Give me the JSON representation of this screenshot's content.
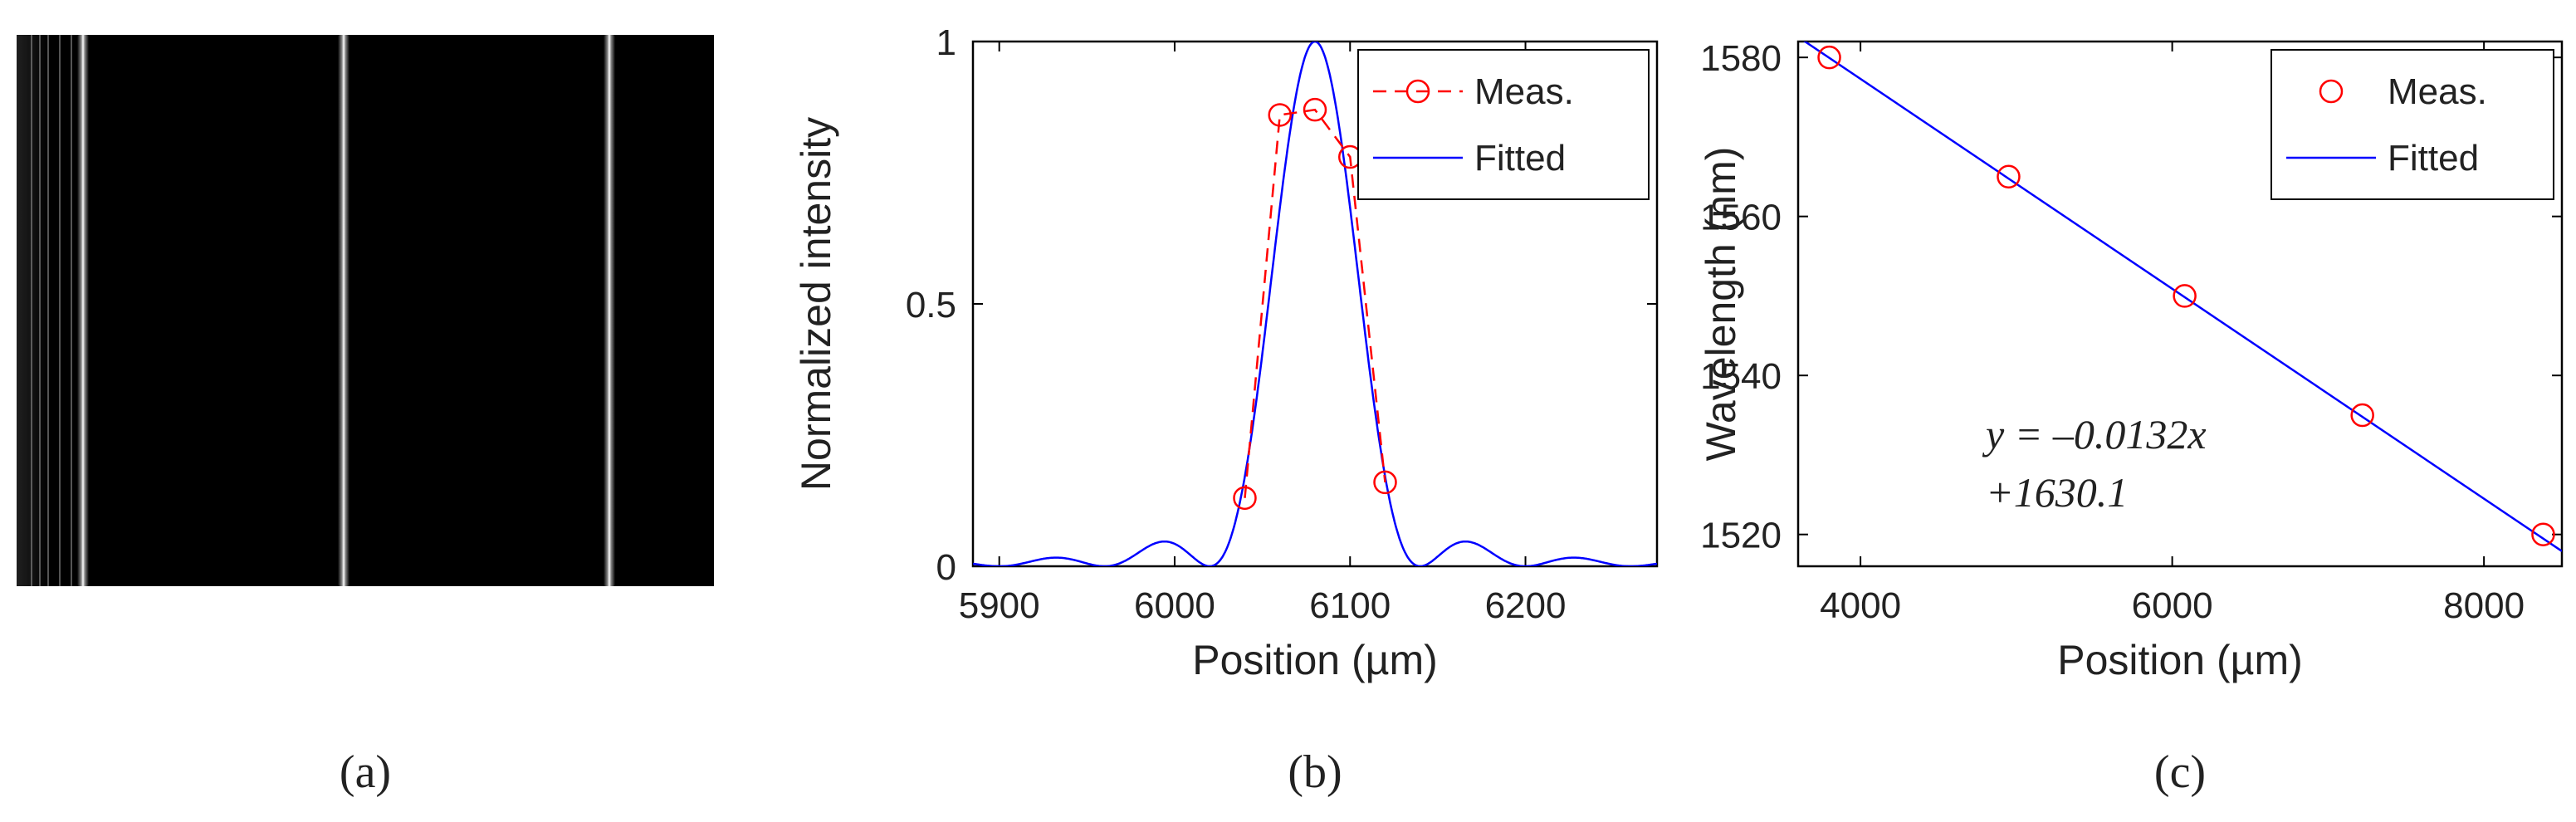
{
  "panel_labels": [
    "(a)",
    "(b)",
    "(c)"
  ],
  "chart_data": [
    {
      "panel": "(a)",
      "type": "image",
      "description_label": "",
      "bright_lines": 3
    },
    {
      "panel": "(b)",
      "type": "line",
      "title": "",
      "xlabel": "Position (µm)",
      "ylabel": "Normalized intensity",
      "xlim": [
        5885,
        6275
      ],
      "ylim": [
        0,
        1
      ],
      "xticks": [
        5900,
        6000,
        6100,
        6200
      ],
      "xtick_labels": [
        "5900",
        "6000",
        "6100",
        "6200"
      ],
      "yticks": [
        0,
        0.5,
        1
      ],
      "ytick_labels": [
        "0",
        "0.5",
        "1"
      ],
      "legend_position": "top-right",
      "series": [
        {
          "name": "Meas.",
          "style": "red dashed line with open circle markers",
          "color": "#ff0000",
          "x": [
            6040,
            6060,
            6080,
            6100,
            6120
          ],
          "y": [
            0.13,
            0.86,
            0.87,
            0.78,
            0.16
          ]
        },
        {
          "name": "Fitted",
          "style": "solid line",
          "color": "#0000ff",
          "function": "sinc_squared",
          "center": 6080,
          "first_zero_offset": 60
        }
      ]
    },
    {
      "panel": "(c)",
      "type": "scatter",
      "title": "",
      "xlabel": "Position (µm)",
      "ylabel": "Wavelength (nm)",
      "xlim": [
        3600,
        8500
      ],
      "ylim": [
        1516,
        1582
      ],
      "xticks": [
        4000,
        6000,
        8000
      ],
      "xtick_labels": [
        "4000",
        "6000",
        "8000"
      ],
      "yticks": [
        1520,
        1540,
        1560,
        1580
      ],
      "ytick_labels": [
        "1520",
        "1540",
        "1560",
        "1580"
      ],
      "legend_position": "top-right",
      "annotation_line1": "y = –0.0132x",
      "annotation_line2": "+1630.1",
      "series": [
        {
          "name": "Meas.",
          "style": "open circle markers",
          "color": "#ff0000",
          "x": [
            3800,
            4950,
            6080,
            7220,
            8380
          ],
          "y": [
            1580,
            1565,
            1550,
            1535,
            1520
          ]
        },
        {
          "name": "Fitted",
          "style": "solid line",
          "color": "#0000ff",
          "slope": -0.0132,
          "intercept": 1630.1
        }
      ]
    }
  ]
}
